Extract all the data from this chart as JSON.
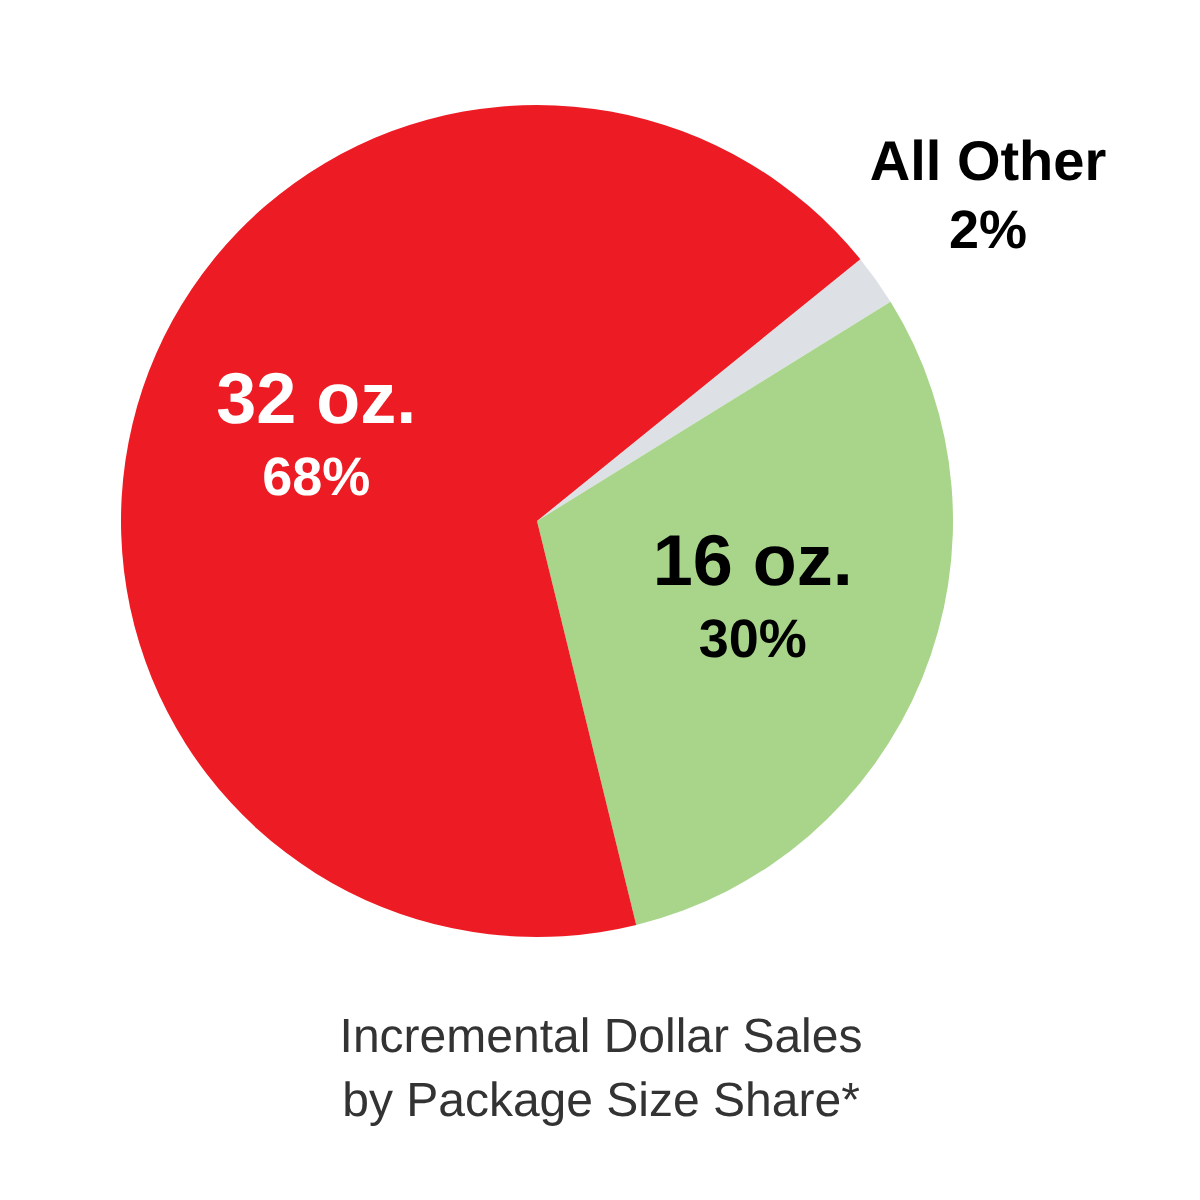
{
  "chart_data": {
    "type": "pie",
    "title": "Incremental Dollar Sales\nby Package Size Share*",
    "categories": [
      "All Other",
      "16 oz.",
      "32 oz."
    ],
    "values": [
      2,
      30,
      68
    ],
    "value_labels": [
      "2%",
      "30%",
      "68%"
    ],
    "colors": [
      "#dde1e6",
      "#a8d58a",
      "#ed1c24"
    ]
  }
}
